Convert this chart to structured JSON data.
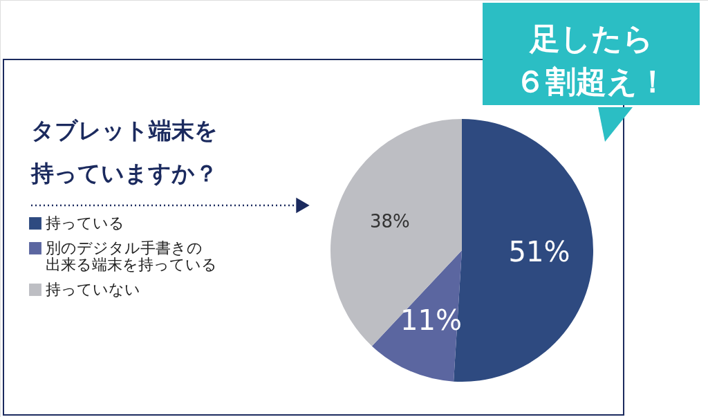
{
  "chart_data": {
    "type": "pie",
    "title": "タブレット端末を持っていますか？",
    "categories": [
      "持っている",
      "別のデジタル手書きの出来る端末を持っている",
      "持っていない"
    ],
    "values": [
      51,
      11,
      38
    ],
    "colors": [
      "#2e4a80",
      "#5b66a0",
      "#bdbec3"
    ],
    "value_labels": [
      "51%",
      "11%",
      "38%"
    ],
    "legend": "left",
    "annotations": [
      "足したら６割超え！"
    ]
  }
}
